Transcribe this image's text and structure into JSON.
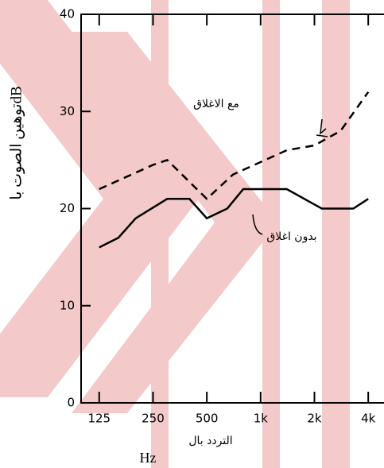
{
  "chart_data": {
    "type": "line",
    "ylabel": "توهين الصوت باdB",
    "xlabel": "التردد بال",
    "xlabel_unit": "Hz",
    "annotations": [
      "مع الاغلاق",
      "بدون اغلاق"
    ],
    "log_x": true,
    "xlim": [
      99,
      4900
    ],
    "xticks": [
      125,
      250,
      500,
      {
        "value": 1000,
        "label": "1k"
      },
      {
        "value": 2000,
        "label": "2k"
      },
      {
        "value": 4000,
        "label": "4k"
      }
    ],
    "ylim": [
      0,
      40
    ],
    "yticks": [
      0,
      10,
      20,
      30,
      40
    ],
    "series": [
      {
        "name": "مع الاغلاق",
        "color": "#000000",
        "dash": true,
        "x": [
          125,
          250,
          300,
          500,
          700,
          1400,
          2000,
          2800,
          4000
        ],
        "values": [
          22,
          24.5,
          25,
          21,
          23.5,
          26,
          26.5,
          28,
          32
        ]
      },
      {
        "name": "بدون اغلاق",
        "color": "#000000",
        "dash": false,
        "x": [
          125,
          160,
          200,
          300,
          400,
          500,
          650,
          800,
          1400,
          2200,
          3300,
          4000
        ],
        "values": [
          16,
          17,
          19,
          21,
          21,
          19,
          20,
          22,
          22,
          20,
          20,
          21
        ]
      }
    ]
  }
}
